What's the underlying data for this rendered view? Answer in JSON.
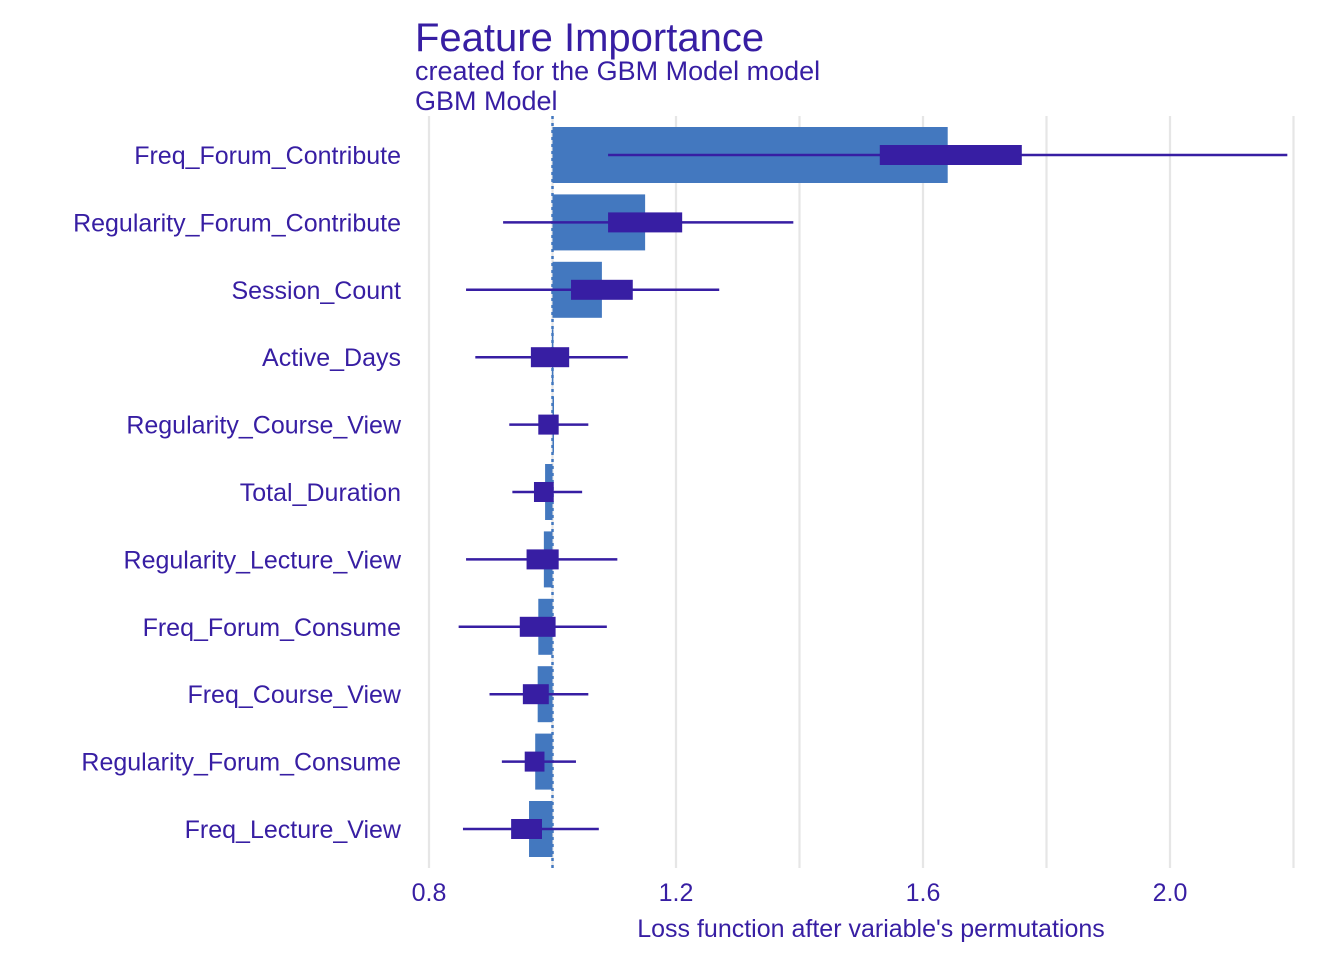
{
  "chart_data": {
    "type": "bar",
    "title": "Feature Importance",
    "subtitle": "created for the GBM Model model",
    "facet_label": "GBM Model",
    "xlabel": "Loss function after variable's permutations",
    "ylabel": "",
    "baseline": 1.0,
    "xlim": [
      0.8,
      2.2
    ],
    "xticks": [
      0.8,
      1.2,
      1.6,
      2.0
    ],
    "xtick_labels": [
      "0.8",
      "1.2",
      "1.6",
      "2.0"
    ],
    "grid": true,
    "colors": {
      "bar": "#4378bf",
      "box": "#371ea3",
      "text": "#371ea3",
      "grid": "#e6e6e6"
    },
    "categories": [
      "Freq_Forum_Contribute",
      "Regularity_Forum_Contribute",
      "Session_Count",
      "Active_Days",
      "Regularity_Course_View",
      "Total_Duration",
      "Regularity_Lecture_View",
      "Freq_Forum_Consume",
      "Freq_Course_View",
      "Regularity_Forum_Consume",
      "Freq_Lecture_View"
    ],
    "values": [
      1.64,
      1.15,
      1.08,
      0.999,
      1.0,
      0.988,
      0.986,
      0.977,
      0.976,
      0.972,
      0.962
    ],
    "boxes": [
      {
        "min": 1.09,
        "q1": 1.53,
        "q3": 1.76,
        "max": 2.19
      },
      {
        "min": 0.92,
        "q1": 1.09,
        "q3": 1.21,
        "max": 1.39
      },
      {
        "min": 0.86,
        "q1": 1.03,
        "q3": 1.13,
        "max": 1.27
      },
      {
        "min": 0.875,
        "q1": 0.965,
        "q3": 1.027,
        "max": 1.122
      },
      {
        "min": 0.93,
        "q1": 0.977,
        "q3": 1.01,
        "max": 1.058
      },
      {
        "min": 0.935,
        "q1": 0.97,
        "q3": 1.002,
        "max": 1.048
      },
      {
        "min": 0.86,
        "q1": 0.958,
        "q3": 1.01,
        "max": 1.105
      },
      {
        "min": 0.848,
        "q1": 0.947,
        "q3": 1.005,
        "max": 1.088
      },
      {
        "min": 0.898,
        "q1": 0.952,
        "q3": 0.994,
        "max": 1.058
      },
      {
        "min": 0.918,
        "q1": 0.955,
        "q3": 0.987,
        "max": 1.038
      },
      {
        "min": 0.855,
        "q1": 0.933,
        "q3": 0.983,
        "max": 1.075
      }
    ]
  }
}
